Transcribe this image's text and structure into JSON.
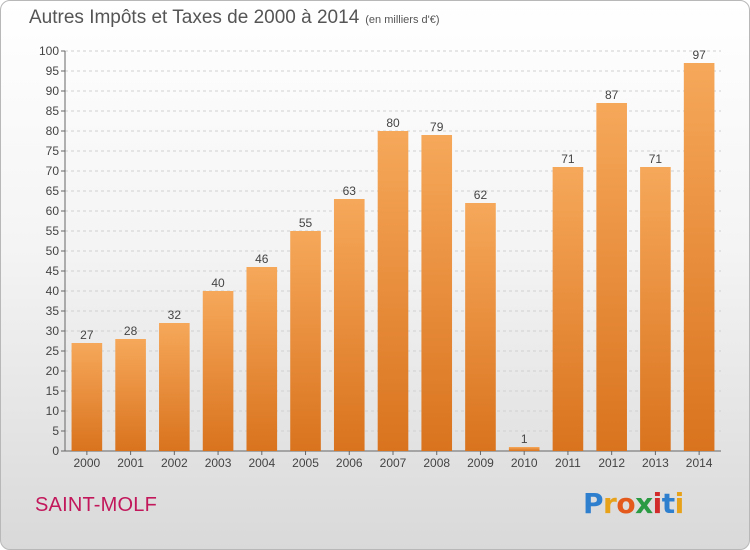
{
  "header": {
    "title": "Autres Impôts et Taxes de 2000 à 2014",
    "unit": "(en milliers d'€)"
  },
  "footer": {
    "commune": "SAINT-MOLF",
    "logo": [
      "P",
      "r",
      "o",
      "x",
      "i",
      "t",
      "i"
    ]
  },
  "colors": {
    "bar_light": "#f6a85a",
    "bar_dark": "#d9731e",
    "commune": "#c2185b",
    "logo": [
      "#2f7fcf",
      "#e8a21a",
      "#e35a1c",
      "#2b9b43",
      "#d22b2b",
      "#2f7fcf",
      "#e8a21a"
    ]
  },
  "chart_data": {
    "type": "bar",
    "title": "Autres Impôts et Taxes de 2000 à 2014",
    "xlabel": "",
    "ylabel": "",
    "categories": [
      "2000",
      "2001",
      "2002",
      "2003",
      "2004",
      "2005",
      "2006",
      "2007",
      "2008",
      "2009",
      "2010",
      "2011",
      "2012",
      "2013",
      "2014"
    ],
    "values": [
      27,
      28,
      32,
      40,
      46,
      55,
      63,
      80,
      79,
      62,
      1,
      71,
      87,
      71,
      97
    ],
    "ylim": [
      0,
      100
    ],
    "yticks": [
      0,
      5,
      10,
      15,
      20,
      25,
      30,
      35,
      40,
      45,
      50,
      55,
      60,
      65,
      70,
      75,
      80,
      85,
      90,
      95,
      100
    ],
    "grid": true,
    "legend": "none"
  }
}
